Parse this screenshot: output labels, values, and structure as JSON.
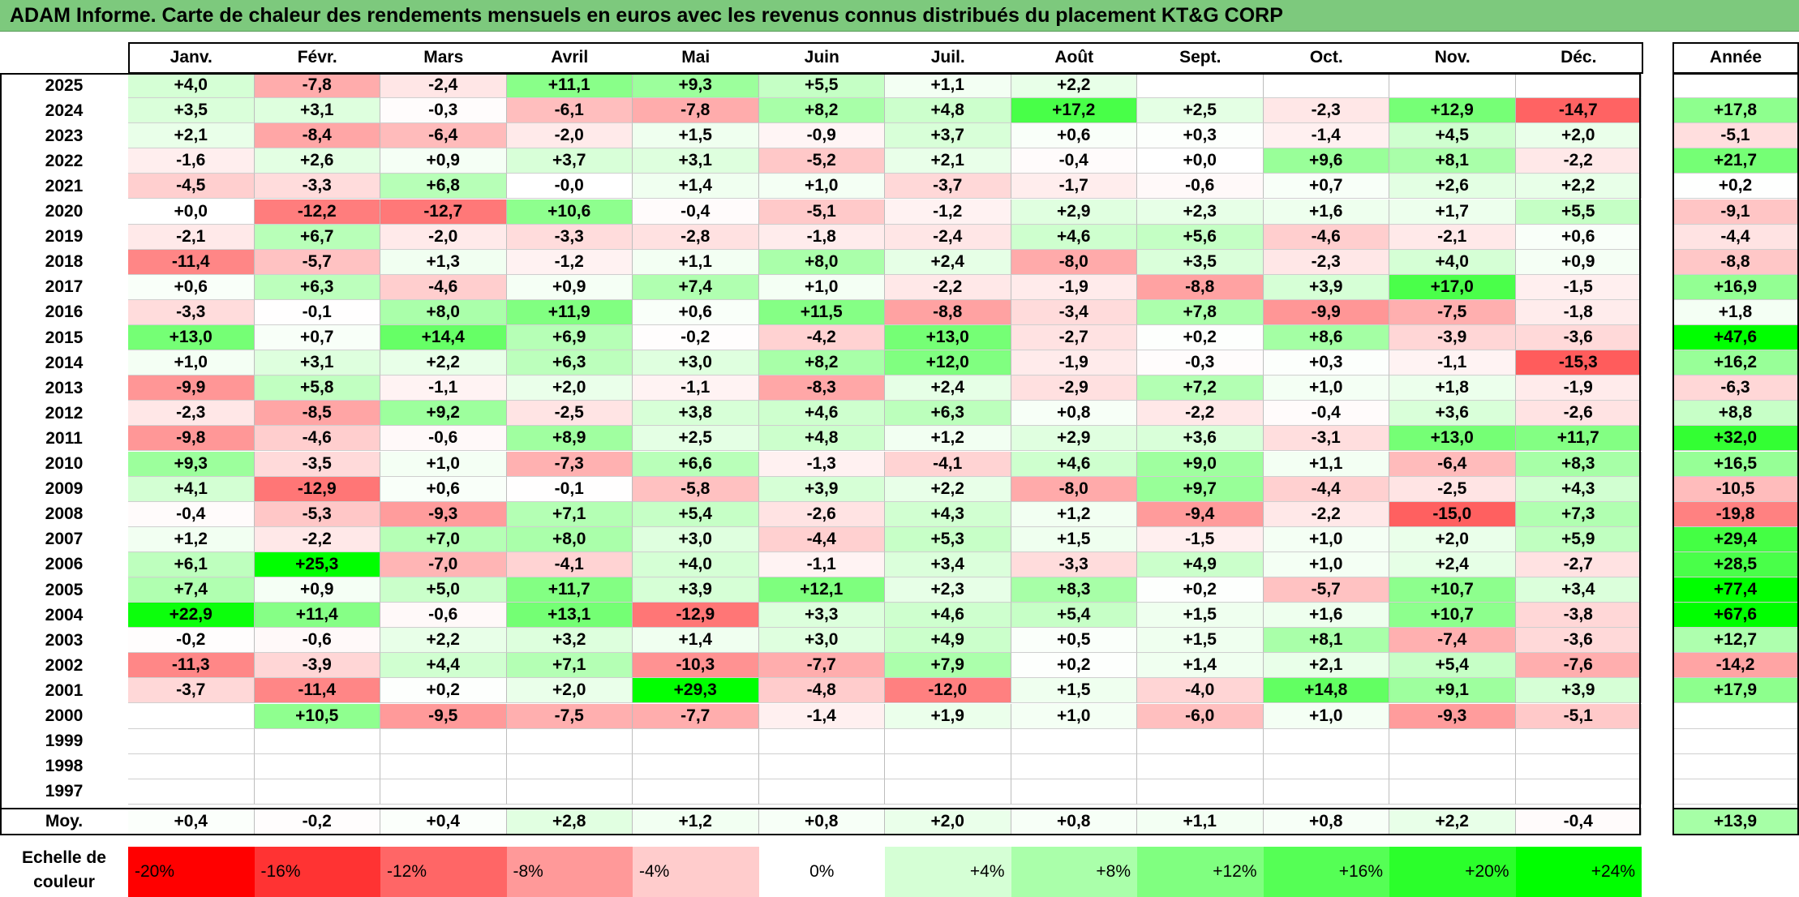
{
  "title": "ADAM Informe. Carte de chaleur des rendements mensuels en euros avec les revenus connus distribués du placement KT&G CORP",
  "chart_data": {
    "type": "heatmap",
    "title": "ADAM Informe. Carte de chaleur des rendements mensuels en euros avec les revenus connus distribués du placement KT&G CORP",
    "months": [
      "Janv.",
      "Févr.",
      "Mars",
      "Avril",
      "Mai",
      "Juin",
      "Juil.",
      "Août",
      "Sept.",
      "Oct.",
      "Nov.",
      "Déc."
    ],
    "year_header": "Année",
    "rows": [
      {
        "year": "2025",
        "values": [
          "+4,0",
          "-7,8",
          "-2,4",
          "+11,1",
          "+9,3",
          "+5,5",
          "+1,1",
          "+2,2",
          "",
          "",
          "",
          ""
        ],
        "annual": ""
      },
      {
        "year": "2024",
        "values": [
          "+3,5",
          "+3,1",
          "-0,3",
          "-6,1",
          "-7,8",
          "+8,2",
          "+4,8",
          "+17,2",
          "+2,5",
          "-2,3",
          "+12,9",
          "-14,7"
        ],
        "annual": "+17,8"
      },
      {
        "year": "2023",
        "values": [
          "+2,1",
          "-8,4",
          "-6,4",
          "-2,0",
          "+1,5",
          "-0,9",
          "+3,7",
          "+0,6",
          "+0,3",
          "-1,4",
          "+4,5",
          "+2,0"
        ],
        "annual": "-5,1"
      },
      {
        "year": "2022",
        "values": [
          "-1,6",
          "+2,6",
          "+0,9",
          "+3,7",
          "+3,1",
          "-5,2",
          "+2,1",
          "-0,4",
          "+0,0",
          "+9,6",
          "+8,1",
          "-2,2"
        ],
        "annual": "+21,7"
      },
      {
        "year": "2021",
        "values": [
          "-4,5",
          "-3,3",
          "+6,8",
          "-0,0",
          "+1,4",
          "+1,0",
          "-3,7",
          "-1,7",
          "-0,6",
          "+0,7",
          "+2,6",
          "+2,2"
        ],
        "annual": "+0,2"
      },
      {
        "year": "2020",
        "values": [
          "+0,0",
          "-12,2",
          "-12,7",
          "+10,6",
          "-0,4",
          "-5,1",
          "-1,2",
          "+2,9",
          "+2,3",
          "+1,6",
          "+1,7",
          "+5,5"
        ],
        "annual": "-9,1"
      },
      {
        "year": "2019",
        "values": [
          "-2,1",
          "+6,7",
          "-2,0",
          "-3,3",
          "-2,8",
          "-1,8",
          "-2,4",
          "+4,6",
          "+5,6",
          "-4,6",
          "-2,1",
          "+0,6"
        ],
        "annual": "-4,4"
      },
      {
        "year": "2018",
        "values": [
          "-11,4",
          "-5,7",
          "+1,3",
          "-1,2",
          "+1,1",
          "+8,0",
          "+2,4",
          "-8,0",
          "+3,5",
          "-2,3",
          "+4,0",
          "+0,9"
        ],
        "annual": "-8,8"
      },
      {
        "year": "2017",
        "values": [
          "+0,6",
          "+6,3",
          "-4,6",
          "+0,9",
          "+7,4",
          "+1,0",
          "-2,2",
          "-1,9",
          "-8,8",
          "+3,9",
          "+17,0",
          "-1,5"
        ],
        "annual": "+16,9"
      },
      {
        "year": "2016",
        "values": [
          "-3,3",
          "-0,1",
          "+8,0",
          "+11,9",
          "+0,6",
          "+11,5",
          "-8,8",
          "-3,4",
          "+7,8",
          "-9,9",
          "-7,5",
          "-1,8"
        ],
        "annual": "+1,8"
      },
      {
        "year": "2015",
        "values": [
          "+13,0",
          "+0,7",
          "+14,4",
          "+6,9",
          "-0,2",
          "-4,2",
          "+13,0",
          "-2,7",
          "+0,2",
          "+8,6",
          "-3,9",
          "-3,6"
        ],
        "annual": "+47,6"
      },
      {
        "year": "2014",
        "values": [
          "+1,0",
          "+3,1",
          "+2,2",
          "+6,3",
          "+3,0",
          "+8,2",
          "+12,0",
          "-1,9",
          "-0,3",
          "+0,3",
          "-1,1",
          "-15,3"
        ],
        "annual": "+16,2"
      },
      {
        "year": "2013",
        "values": [
          "-9,9",
          "+5,8",
          "-1,1",
          "+2,0",
          "-1,1",
          "-8,3",
          "+2,4",
          "-2,9",
          "+7,2",
          "+1,0",
          "+1,8",
          "-1,9"
        ],
        "annual": "-6,3"
      },
      {
        "year": "2012",
        "values": [
          "-2,3",
          "-8,5",
          "+9,2",
          "-2,5",
          "+3,8",
          "+4,6",
          "+6,3",
          "+0,8",
          "-2,2",
          "-0,4",
          "+3,6",
          "-2,6"
        ],
        "annual": "+8,8"
      },
      {
        "year": "2011",
        "values": [
          "-9,8",
          "-4,6",
          "-0,6",
          "+8,9",
          "+2,5",
          "+4,8",
          "+1,2",
          "+2,9",
          "+3,6",
          "-3,1",
          "+13,0",
          "+11,7"
        ],
        "annual": "+32,0"
      },
      {
        "year": "2010",
        "values": [
          "+9,3",
          "-3,5",
          "+1,0",
          "-7,3",
          "+6,6",
          "-1,3",
          "-4,1",
          "+4,6",
          "+9,0",
          "+1,1",
          "-6,4",
          "+8,3"
        ],
        "annual": "+16,5"
      },
      {
        "year": "2009",
        "values": [
          "+4,1",
          "-12,9",
          "+0,6",
          "-0,1",
          "-5,8",
          "+3,9",
          "+2,2",
          "-8,0",
          "+9,7",
          "-4,4",
          "-2,5",
          "+4,3"
        ],
        "annual": "-10,5"
      },
      {
        "year": "2008",
        "values": [
          "-0,4",
          "-5,3",
          "-9,3",
          "+7,1",
          "+5,4",
          "-2,6",
          "+4,3",
          "+1,2",
          "-9,4",
          "-2,2",
          "-15,0",
          "+7,3"
        ],
        "annual": "-19,8"
      },
      {
        "year": "2007",
        "values": [
          "+1,2",
          "-2,2",
          "+7,0",
          "+8,0",
          "+3,0",
          "-4,4",
          "+5,3",
          "+1,5",
          "-1,5",
          "+1,0",
          "+2,0",
          "+5,9"
        ],
        "annual": "+29,4"
      },
      {
        "year": "2006",
        "values": [
          "+6,1",
          "+25,3",
          "-7,0",
          "-4,1",
          "+4,0",
          "-1,1",
          "+3,4",
          "-3,3",
          "+4,9",
          "+1,0",
          "+2,4",
          "-2,7"
        ],
        "annual": "+28,5"
      },
      {
        "year": "2005",
        "values": [
          "+7,4",
          "+0,9",
          "+5,0",
          "+11,7",
          "+3,9",
          "+12,1",
          "+2,3",
          "+8,3",
          "+0,2",
          "-5,7",
          "+10,7",
          "+3,4"
        ],
        "annual": "+77,4"
      },
      {
        "year": "2004",
        "values": [
          "+22,9",
          "+11,4",
          "-0,6",
          "+13,1",
          "-12,9",
          "+3,3",
          "+4,6",
          "+5,4",
          "+1,5",
          "+1,6",
          "+10,7",
          "-3,8"
        ],
        "annual": "+67,6"
      },
      {
        "year": "2003",
        "values": [
          "-0,2",
          "-0,6",
          "+2,2",
          "+3,2",
          "+1,4",
          "+3,0",
          "+4,9",
          "+0,5",
          "+1,5",
          "+8,1",
          "-7,4",
          "-3,6"
        ],
        "annual": "+12,7"
      },
      {
        "year": "2002",
        "values": [
          "-11,3",
          "-3,9",
          "+4,4",
          "+7,1",
          "-10,3",
          "-7,7",
          "+7,9",
          "+0,2",
          "+1,4",
          "+2,1",
          "+5,4",
          "-7,6"
        ],
        "annual": "-14,2"
      },
      {
        "year": "2001",
        "values": [
          "-3,7",
          "-11,4",
          "+0,2",
          "+2,0",
          "+29,3",
          "-4,8",
          "-12,0",
          "+1,5",
          "-4,0",
          "+14,8",
          "+9,1",
          "+3,9"
        ],
        "annual": "+17,9"
      },
      {
        "year": "2000",
        "values": [
          "",
          "+10,5",
          "-9,5",
          "-7,5",
          "-7,7",
          "-1,4",
          "+1,9",
          "+1,0",
          "-6,0",
          "+1,0",
          "-9,3",
          "-5,1"
        ],
        "annual": ""
      },
      {
        "year": "1999",
        "values": [
          "",
          "",
          "",
          "",
          "",
          "",
          "",
          "",
          "",
          "",
          "",
          ""
        ],
        "annual": ""
      },
      {
        "year": "1998",
        "values": [
          "",
          "",
          "",
          "",
          "",
          "",
          "",
          "",
          "",
          "",
          "",
          ""
        ],
        "annual": ""
      },
      {
        "year": "1997",
        "values": [
          "",
          "",
          "",
          "",
          "",
          "",
          "",
          "",
          "",
          "",
          "",
          ""
        ],
        "annual": ""
      }
    ],
    "average": {
      "label": "Moy.",
      "values": [
        "+0,4",
        "-0,2",
        "+0,4",
        "+2,8",
        "+1,2",
        "+0,8",
        "+2,0",
        "+0,8",
        "+1,1",
        "+0,8",
        "+2,2",
        "-0,4"
      ],
      "annual": "+13,9"
    },
    "color_scale": {
      "label_line1": "Echelle de",
      "label_line2": "couleur",
      "steps": [
        {
          "label": "-20%",
          "value": -20,
          "color": "#ff0000"
        },
        {
          "label": "-16%",
          "value": -16,
          "color": "#ff3333"
        },
        {
          "label": "-12%",
          "value": -12,
          "color": "#ff6666"
        },
        {
          "label": "-8%",
          "value": -8,
          "color": "#ff9999"
        },
        {
          "label": "-4%",
          "value": -4,
          "color": "#ffcccc"
        },
        {
          "label": "0%",
          "value": 0,
          "color": "#ffffff"
        },
        {
          "label": "+4%",
          "value": 4,
          "color": "#d5ffd5"
        },
        {
          "label": "+8%",
          "value": 8,
          "color": "#aaffaa"
        },
        {
          "label": "+12%",
          "value": 12,
          "color": "#80ff80"
        },
        {
          "label": "+16%",
          "value": 16,
          "color": "#55ff55"
        },
        {
          "label": "+20%",
          "value": 20,
          "color": "#2bff2b"
        },
        {
          "label": "+24%",
          "value": 24,
          "color": "#00ff00"
        }
      ]
    }
  }
}
